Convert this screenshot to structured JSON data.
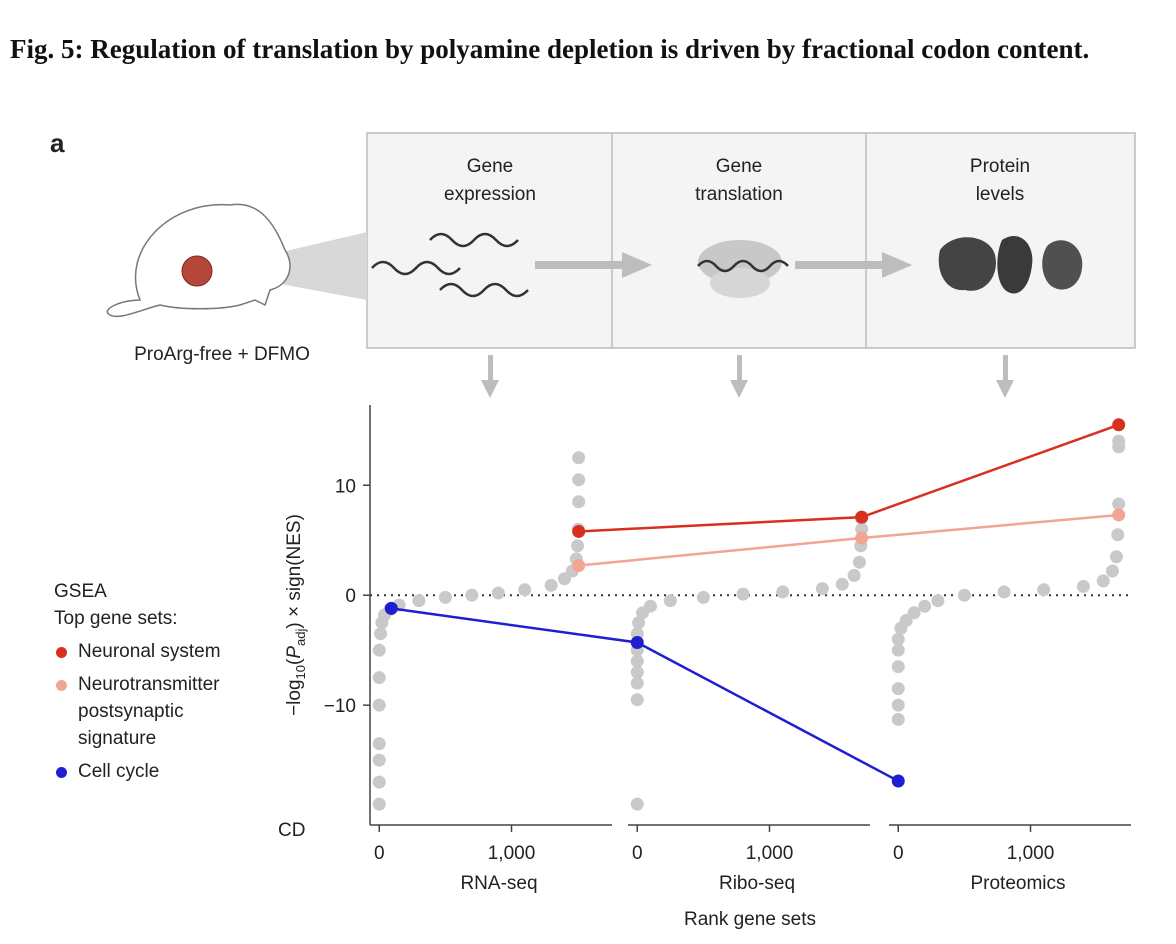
{
  "title": "Fig. 5: Regulation of translation by polyamine depletion is driven by fractional codon content.",
  "panel_label": "a",
  "diagram": {
    "condition": "ProArg-free + DFMO",
    "stages": [
      {
        "lines": [
          "Gene",
          "expression"
        ]
      },
      {
        "lines": [
          "Gene",
          "translation"
        ]
      },
      {
        "lines": [
          "Protein",
          "levels"
        ]
      }
    ]
  },
  "chart_data": {
    "type": "scatter",
    "ylabel_parts": [
      "−log",
      "10",
      "(",
      "P",
      "adj",
      ") × sign(NES)"
    ],
    "xlabel": "Rank gene sets",
    "y_annotation": "CD",
    "ylim": [
      -20.9,
      17.3
    ],
    "yticks": [
      {
        "value": -10,
        "label": "−10"
      },
      0,
      10
    ],
    "hline": 0,
    "legend_title": "GSEA",
    "legend_subtitle": "Top gene sets:",
    "background_color": "#c9c9c9",
    "panels": [
      {
        "name": "RNA-seq",
        "xlim": [
          -70,
          1760
        ],
        "xticks": [
          0,
          {
            "value": 1000,
            "label": "1,000"
          }
        ],
        "background": {
          "x": [
            0,
            0,
            0,
            0,
            0,
            0,
            0,
            10,
            20,
            40,
            80,
            150,
            300,
            500,
            700,
            900,
            1100,
            1300,
            1400,
            1460,
            1490,
            1500,
            1505,
            1508,
            1508,
            1508
          ],
          "y": [
            -19,
            -17,
            -15,
            -13.5,
            -10,
            -7.5,
            -5,
            -3.5,
            -2.5,
            -1.8,
            -1.3,
            -0.9,
            -0.5,
            -0.2,
            0,
            0.2,
            0.5,
            0.9,
            1.5,
            2.2,
            3.3,
            4.5,
            6,
            8.5,
            10.5,
            12.5
          ]
        }
      },
      {
        "name": "Ribo-seq",
        "xlim": [
          -70,
          1760
        ],
        "xticks": [
          0,
          {
            "value": 1000,
            "label": "1,000"
          }
        ],
        "background": {
          "x": [
            0,
            0,
            0,
            0,
            0,
            0,
            0,
            10,
            40,
            100,
            250,
            500,
            800,
            1100,
            1400,
            1550,
            1640,
            1680,
            1690,
            1697,
            1697
          ],
          "y": [
            -19,
            -9.5,
            -8,
            -7,
            -6,
            -5,
            -3.5,
            -2.5,
            -1.6,
            -1,
            -0.5,
            -0.2,
            0.1,
            0.3,
            0.6,
            1,
            1.8,
            3,
            4.5,
            6,
            7
          ]
        }
      },
      {
        "name": "Proteomics",
        "xlim": [
          -70,
          1760
        ],
        "xticks": [
          0,
          {
            "value": 1000,
            "label": "1,000"
          }
        ],
        "background": {
          "x": [
            0,
            0,
            0,
            0,
            0,
            0,
            20,
            60,
            120,
            200,
            300,
            500,
            800,
            1100,
            1400,
            1550,
            1620,
            1650,
            1660,
            1667,
            1667,
            1667
          ],
          "y": [
            -11.3,
            -10,
            -8.5,
            -6.5,
            -5,
            -4,
            -3,
            -2.3,
            -1.6,
            -1,
            -0.5,
            0,
            0.3,
            0.5,
            0.8,
            1.3,
            2.2,
            3.5,
            5.5,
            8.3,
            13.5,
            14
          ]
        }
      }
    ],
    "series": [
      {
        "name": "Neuronal system",
        "color": "#d7301f",
        "x": [
          1508,
          1697,
          1667
        ],
        "values": [
          5.8,
          7.1,
          15.5
        ]
      },
      {
        "name": "Neurotransmitter postsynaptic signature",
        "color": "#f2a594",
        "x": [
          1508,
          1697,
          1667
        ],
        "values": [
          2.7,
          5.2,
          7.3
        ]
      },
      {
        "name": "Cell cycle",
        "color": "#1f1fd0",
        "x": [
          91,
          0,
          0
        ],
        "values": [
          -1.2,
          -4.3,
          -16.9
        ]
      }
    ]
  }
}
